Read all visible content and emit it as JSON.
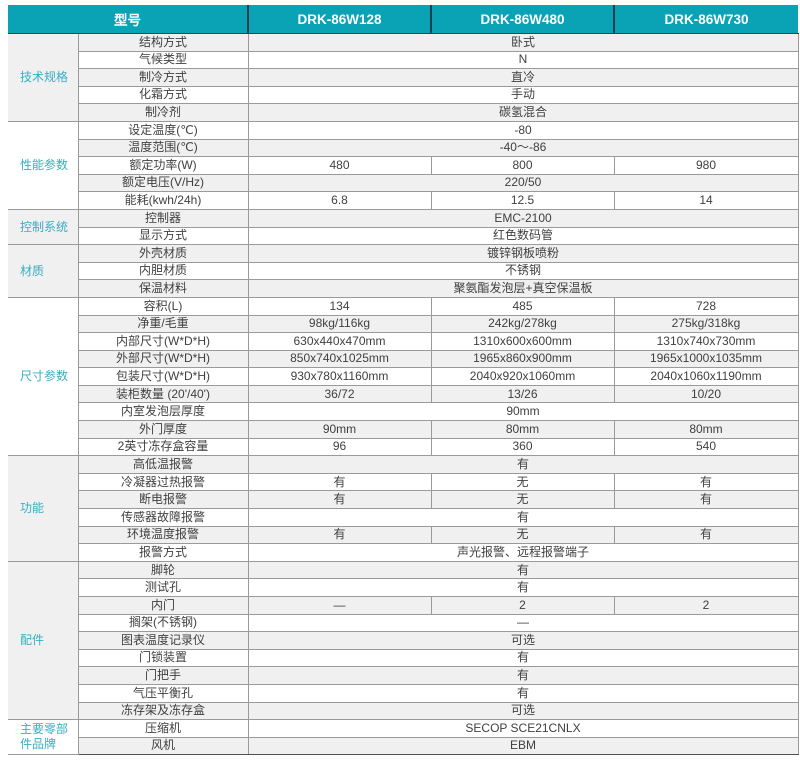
{
  "colors": {
    "header_teal": "#0aa3b5",
    "header_separator": "#17414d",
    "group_label_text": "#35aec2",
    "row_alt_background": "#f0f0f1",
    "cell_border": "#9a9a9a",
    "section_border": "#4f4f4f",
    "body_text": "#3f3f3f"
  },
  "table": {
    "header": {
      "model_label": "型号",
      "models": [
        "DRK-86W128",
        "DRK-86W480",
        "DRK-86W730"
      ]
    },
    "sections": [
      {
        "group": "技术规格",
        "rows": [
          {
            "label": "结构方式",
            "values": [
              "卧式"
            ]
          },
          {
            "label": "气候类型",
            "values": [
              "N"
            ]
          },
          {
            "label": "制冷方式",
            "values": [
              "直冷"
            ]
          },
          {
            "label": "化霜方式",
            "values": [
              "手动"
            ]
          },
          {
            "label": "制冷剂",
            "values": [
              "碳氢混合"
            ]
          }
        ]
      },
      {
        "group": "性能参数",
        "rows": [
          {
            "label": "设定温度(℃)",
            "values": [
              "-80"
            ]
          },
          {
            "label": "温度范围(℃)",
            "values": [
              "-40～-86"
            ]
          },
          {
            "label": "额定功率(W)",
            "values": [
              "480",
              "800",
              "980"
            ]
          },
          {
            "label": "额定电压(V/Hz)",
            "values": [
              "220/50"
            ]
          },
          {
            "label": "能耗(kwh/24h)",
            "values": [
              "6.8",
              "12.5",
              "14"
            ]
          }
        ]
      },
      {
        "group": "控制系统",
        "rows": [
          {
            "label": "控制器",
            "values": [
              "EMC-2100"
            ]
          },
          {
            "label": "显示方式",
            "values": [
              "红色数码管"
            ]
          }
        ]
      },
      {
        "group": "材质",
        "rows": [
          {
            "label": "外壳材质",
            "values": [
              "镀锌钢板喷粉"
            ]
          },
          {
            "label": "内胆材质",
            "values": [
              "不锈钢"
            ]
          },
          {
            "label": "保温材料",
            "values": [
              "聚氨酯发泡层+真空保温板"
            ]
          }
        ]
      },
      {
        "group": "尺寸参数",
        "rows": [
          {
            "label": "容积(L)",
            "values": [
              "134",
              "485",
              "728"
            ]
          },
          {
            "label": "净重/毛重",
            "values": [
              "98kg/116kg",
              "242kg/278kg",
              "275kg/318kg"
            ]
          },
          {
            "label": "内部尺寸(W*D*H)",
            "values": [
              "630x440x470mm",
              "1310x600x600mm",
              "1310x740x730mm"
            ]
          },
          {
            "label": "外部尺寸(W*D*H)",
            "values": [
              "850x740x1025mm",
              "1965x860x900mm",
              "1965x1000x1035mm"
            ]
          },
          {
            "label": "包装尺寸(W*D*H)",
            "values": [
              "930x780x1160mm",
              "2040x920x1060mm",
              "2040x1060x1190mm"
            ]
          },
          {
            "label": "装柜数量 (20'/40')",
            "values": [
              "36/72",
              "13/26",
              "10/20"
            ]
          },
          {
            "label": "内室发泡层厚度",
            "values": [
              "90mm"
            ]
          },
          {
            "label": "外门厚度",
            "values": [
              "90mm",
              "80mm",
              "80mm"
            ]
          },
          {
            "label": "2英寸冻存盒容量",
            "values": [
              "96",
              "360",
              "540"
            ]
          }
        ]
      },
      {
        "group": "功能",
        "rows": [
          {
            "label": "高低温报警",
            "values": [
              "有"
            ]
          },
          {
            "label": "冷凝器过热报警",
            "values": [
              "有",
              "无",
              "有"
            ]
          },
          {
            "label": "断电报警",
            "values": [
              "有",
              "无",
              "有"
            ]
          },
          {
            "label": "传感器故障报警",
            "values": [
              "有"
            ]
          },
          {
            "label": "环境温度报警",
            "values": [
              "有",
              "无",
              "有"
            ]
          },
          {
            "label": "报警方式",
            "values": [
              "声光报警、远程报警端子"
            ]
          }
        ]
      },
      {
        "group": "配件",
        "rows": [
          {
            "label": "脚轮",
            "values": [
              "有"
            ]
          },
          {
            "label": "测试孔",
            "values": [
              "有"
            ]
          },
          {
            "label": "内门",
            "values": [
              "—",
              "2",
              "2"
            ]
          },
          {
            "label": "搁架(不锈钢)",
            "values": [
              "—"
            ]
          },
          {
            "label": "图表温度记录仪",
            "values": [
              "可选"
            ]
          },
          {
            "label": "门锁装置",
            "values": [
              "有"
            ]
          },
          {
            "label": "门把手",
            "values": [
              "有"
            ]
          },
          {
            "label": "气压平衡孔",
            "values": [
              "有"
            ]
          },
          {
            "label": "冻存架及冻存盒",
            "values": [
              "可选"
            ]
          }
        ]
      },
      {
        "group": "主要零部件品牌",
        "rows": [
          {
            "label": "压缩机",
            "values": [
              "SECOP SCE21CNLX"
            ]
          },
          {
            "label": "风机",
            "values": [
              "EBM"
            ]
          }
        ]
      }
    ]
  }
}
